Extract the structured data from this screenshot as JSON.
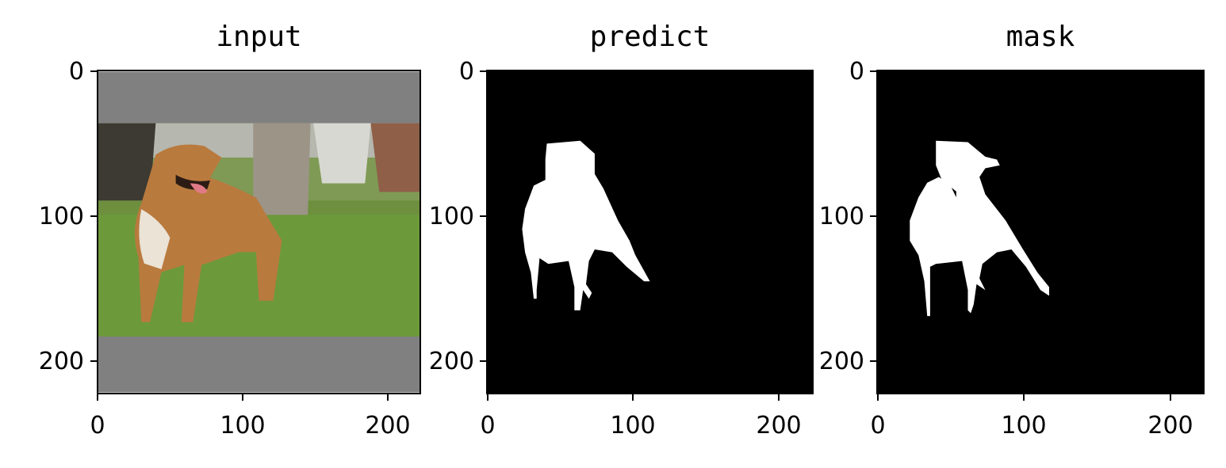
{
  "chart_data": [
    {
      "type": "image",
      "title": "input",
      "xlim": [
        0,
        224
      ],
      "ylim": [
        224,
        0
      ],
      "xticks": [
        "0",
        "100",
        "200"
      ],
      "yticks": [
        "0",
        "100",
        "200"
      ],
      "content": "photo of a tan dog standing on grass, letterboxed with gray bars top and bottom",
      "letterbox_color": "#808080",
      "letterbox_rows": [
        [
          0,
          36
        ],
        [
          185,
          224
        ]
      ]
    },
    {
      "type": "image",
      "title": "predict",
      "xlim": [
        0,
        224
      ],
      "ylim": [
        224,
        0
      ],
      "xticks": [
        "0",
        "100",
        "200"
      ],
      "yticks": [
        "0",
        "100",
        "200"
      ],
      "content": "binary segmentation mask, white dog silhouette on black",
      "foreground_color": "#ffffff",
      "background_color": "#000000"
    },
    {
      "type": "image",
      "title": "mask",
      "xlim": [
        0,
        224
      ],
      "ylim": [
        224,
        0
      ],
      "xticks": [
        "0",
        "100",
        "200"
      ],
      "yticks": [
        "0",
        "100",
        "200"
      ],
      "content": "ground-truth binary mask, white dog silhouette on black",
      "foreground_color": "#ffffff",
      "background_color": "#000000"
    }
  ]
}
